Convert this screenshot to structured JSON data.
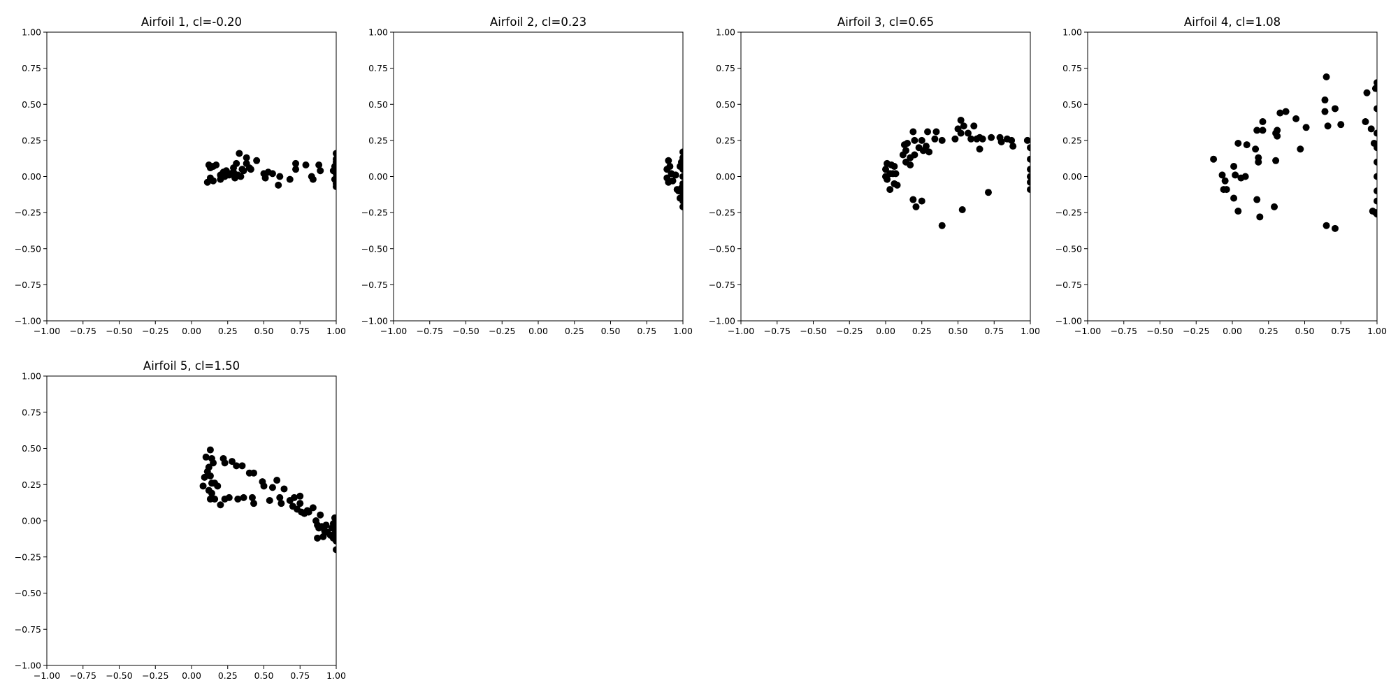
{
  "chart_data": [
    {
      "type": "scatter",
      "title": "Airfoil 1, cl=-0.20",
      "xlim": [
        -1.0,
        1.0
      ],
      "ylim": [
        -1.0,
        1.0
      ],
      "xticks": [
        "−1.00",
        "−0.75",
        "−0.50",
        "−0.25",
        "0.00",
        "0.25",
        "0.50",
        "0.75",
        "1.00"
      ],
      "yticks": [
        "−1.00",
        "−0.75",
        "−0.50",
        "−0.25",
        "0.00",
        "0.25",
        "0.50",
        "0.75",
        "1.00"
      ],
      "grid": false,
      "marker_color": "#000000",
      "points": [
        [
          0.12,
          0.08
        ],
        [
          0.15,
          0.07
        ],
        [
          0.17,
          0.08
        ],
        [
          0.13,
          0.06
        ],
        [
          0.13,
          -0.01
        ],
        [
          0.11,
          -0.04
        ],
        [
          0.15,
          -0.03
        ],
        [
          0.2,
          0.01
        ],
        [
          0.22,
          0.03
        ],
        [
          0.24,
          0.04
        ],
        [
          0.27,
          0.02
        ],
        [
          0.29,
          0.06
        ],
        [
          0.31,
          0.09
        ],
        [
          0.33,
          0.16
        ],
        [
          0.35,
          0.05
        ],
        [
          0.38,
          0.09
        ],
        [
          0.38,
          0.13
        ],
        [
          0.41,
          0.05
        ],
        [
          0.45,
          0.11
        ],
        [
          0.2,
          -0.02
        ],
        [
          0.23,
          0.0
        ],
        [
          0.26,
          0.01
        ],
        [
          0.3,
          -0.01
        ],
        [
          0.32,
          0.01
        ],
        [
          0.34,
          0.0
        ],
        [
          0.36,
          0.04
        ],
        [
          0.4,
          0.06
        ],
        [
          0.29,
          0.03
        ],
        [
          0.5,
          0.02
        ],
        [
          0.51,
          -0.01
        ],
        [
          0.53,
          0.03
        ],
        [
          0.56,
          0.02
        ],
        [
          0.6,
          -0.06
        ],
        [
          0.61,
          0.0
        ],
        [
          0.68,
          -0.02
        ],
        [
          0.72,
          0.09
        ],
        [
          0.72,
          0.05
        ],
        [
          0.79,
          0.08
        ],
        [
          0.83,
          0.0
        ],
        [
          0.84,
          -0.02
        ],
        [
          0.88,
          0.08
        ],
        [
          0.89,
          0.04
        ],
        [
          0.98,
          0.04
        ],
        [
          0.99,
          0.07
        ],
        [
          1.0,
          0.16
        ],
        [
          1.0,
          0.12
        ],
        [
          1.0,
          0.1
        ],
        [
          1.0,
          0.05
        ],
        [
          1.0,
          0.02
        ],
        [
          1.0,
          -0.01
        ],
        [
          1.0,
          -0.03
        ],
        [
          1.0,
          -0.05
        ],
        [
          1.0,
          -0.07
        ],
        [
          0.99,
          -0.02
        ]
      ]
    },
    {
      "type": "scatter",
      "title": "Airfoil 2, cl=0.23",
      "xlim": [
        -1.0,
        1.0
      ],
      "ylim": [
        -1.0,
        1.0
      ],
      "xticks": [
        "−1.00",
        "−0.75",
        "−0.50",
        "−0.25",
        "0.00",
        "0.25",
        "0.50",
        "0.75",
        "1.00"
      ],
      "yticks": [
        "−1.00",
        "−0.75",
        "−0.50",
        "−0.25",
        "0.00",
        "0.25",
        "0.50",
        "0.75",
        "1.00"
      ],
      "grid": false,
      "marker_color": "#000000",
      "points": [
        [
          0.89,
          0.05
        ],
        [
          0.9,
          0.11
        ],
        [
          0.91,
          0.07
        ],
        [
          0.92,
          0.02
        ],
        [
          0.89,
          -0.01
        ],
        [
          0.9,
          -0.04
        ],
        [
          0.93,
          -0.03
        ],
        [
          0.95,
          0.01
        ],
        [
          0.96,
          -0.09
        ],
        [
          0.97,
          -0.1
        ],
        [
          0.98,
          0.07
        ],
        [
          0.99,
          0.1
        ],
        [
          1.0,
          0.17
        ],
        [
          1.0,
          0.13
        ],
        [
          1.0,
          0.05
        ],
        [
          1.0,
          0.0
        ],
        [
          1.0,
          -0.05
        ],
        [
          1.0,
          -0.12
        ],
        [
          1.0,
          -0.17
        ],
        [
          1.0,
          -0.21
        ],
        [
          0.99,
          -0.08
        ],
        [
          0.98,
          -0.15
        ]
      ]
    },
    {
      "type": "scatter",
      "title": "Airfoil 3, cl=0.65",
      "xlim": [
        -1.0,
        1.0
      ],
      "ylim": [
        -1.0,
        1.0
      ],
      "xticks": [
        "−1.00",
        "−0.75",
        "−0.50",
        "−0.25",
        "0.00",
        "0.25",
        "0.50",
        "0.75",
        "1.00"
      ],
      "yticks": [
        "−1.00",
        "−0.75",
        "−0.50",
        "−0.25",
        "0.00",
        "0.25",
        "0.50",
        "0.75",
        "1.00"
      ],
      "grid": false,
      "marker_color": "#000000",
      "points": [
        [
          0.0,
          0.05
        ],
        [
          0.01,
          0.09
        ],
        [
          0.04,
          0.08
        ],
        [
          0.06,
          0.07
        ],
        [
          0.0,
          0.0
        ],
        [
          0.01,
          -0.02
        ],
        [
          0.03,
          0.02
        ],
        [
          0.05,
          0.02
        ],
        [
          0.07,
          0.02
        ],
        [
          0.03,
          -0.09
        ],
        [
          0.06,
          -0.05
        ],
        [
          0.08,
          -0.06
        ],
        [
          0.13,
          0.22
        ],
        [
          0.14,
          0.18
        ],
        [
          0.15,
          0.23
        ],
        [
          0.12,
          0.15
        ],
        [
          0.14,
          0.1
        ],
        [
          0.17,
          0.08
        ],
        [
          0.17,
          0.13
        ],
        [
          0.2,
          0.15
        ],
        [
          0.19,
          0.31
        ],
        [
          0.2,
          0.25
        ],
        [
          0.25,
          0.25
        ],
        [
          0.23,
          0.2
        ],
        [
          0.26,
          0.18
        ],
        [
          0.28,
          0.21
        ],
        [
          0.3,
          0.17
        ],
        [
          0.29,
          0.31
        ],
        [
          0.35,
          0.31
        ],
        [
          0.34,
          0.26
        ],
        [
          0.39,
          0.25
        ],
        [
          0.48,
          0.26
        ],
        [
          0.5,
          0.33
        ],
        [
          0.52,
          0.39
        ],
        [
          0.54,
          0.35
        ],
        [
          0.52,
          0.3
        ],
        [
          0.57,
          0.3
        ],
        [
          0.59,
          0.26
        ],
        [
          0.61,
          0.35
        ],
        [
          0.63,
          0.26
        ],
        [
          0.65,
          0.27
        ],
        [
          0.67,
          0.26
        ],
        [
          0.65,
          0.19
        ],
        [
          0.73,
          0.27
        ],
        [
          0.79,
          0.27
        ],
        [
          0.8,
          0.24
        ],
        [
          0.84,
          0.26
        ],
        [
          0.87,
          0.25
        ],
        [
          0.88,
          0.21
        ],
        [
          0.98,
          0.25
        ],
        [
          1.0,
          0.2
        ],
        [
          1.0,
          0.12
        ],
        [
          1.0,
          0.05
        ],
        [
          1.0,
          0.0
        ],
        [
          1.0,
          -0.04
        ],
        [
          1.0,
          -0.09
        ],
        [
          0.19,
          -0.16
        ],
        [
          0.21,
          -0.21
        ],
        [
          0.25,
          -0.17
        ],
        [
          0.39,
          -0.34
        ],
        [
          0.53,
          -0.23
        ],
        [
          0.71,
          -0.11
        ]
      ]
    },
    {
      "type": "scatter",
      "title": "Airfoil 4, cl=1.08",
      "xlim": [
        -1.0,
        1.0
      ],
      "ylim": [
        -1.0,
        1.0
      ],
      "xticks": [
        "−1.00",
        "−0.75",
        "−0.50",
        "−0.25",
        "0.00",
        "0.25",
        "0.50",
        "0.75",
        "1.00"
      ],
      "yticks": [
        "−1.00",
        "−0.75",
        "−0.50",
        "−0.25",
        "0.00",
        "0.25",
        "0.50",
        "0.75",
        "1.00"
      ],
      "grid": false,
      "marker_color": "#000000",
      "points": [
        [
          -0.13,
          0.12
        ],
        [
          -0.07,
          0.01
        ],
        [
          -0.05,
          -0.03
        ],
        [
          -0.04,
          -0.09
        ],
        [
          -0.06,
          -0.09
        ],
        [
          0.01,
          0.07
        ],
        [
          0.01,
          -0.15
        ],
        [
          0.02,
          0.01
        ],
        [
          0.04,
          -0.24
        ],
        [
          0.04,
          0.23
        ],
        [
          0.06,
          -0.01
        ],
        [
          0.09,
          0.0
        ],
        [
          0.1,
          0.22
        ],
        [
          0.16,
          0.19
        ],
        [
          0.17,
          0.32
        ],
        [
          0.18,
          0.13
        ],
        [
          0.18,
          0.1
        ],
        [
          0.17,
          -0.16
        ],
        [
          0.19,
          -0.28
        ],
        [
          0.21,
          0.32
        ],
        [
          0.21,
          0.38
        ],
        [
          0.29,
          -0.21
        ],
        [
          0.3,
          0.11
        ],
        [
          0.3,
          0.3
        ],
        [
          0.31,
          0.32
        ],
        [
          0.31,
          0.28
        ],
        [
          0.33,
          0.44
        ],
        [
          0.37,
          0.45
        ],
        [
          0.44,
          0.4
        ],
        [
          0.47,
          0.19
        ],
        [
          0.51,
          0.34
        ],
        [
          0.64,
          0.45
        ],
        [
          0.64,
          0.53
        ],
        [
          0.65,
          0.69
        ],
        [
          0.66,
          0.35
        ],
        [
          0.71,
          0.47
        ],
        [
          0.75,
          0.36
        ],
        [
          0.65,
          -0.34
        ],
        [
          0.71,
          -0.36
        ],
        [
          0.92,
          0.38
        ],
        [
          0.93,
          0.58
        ],
        [
          0.96,
          0.33
        ],
        [
          0.98,
          0.23
        ],
        [
          0.97,
          -0.24
        ],
        [
          0.99,
          0.61
        ],
        [
          1.0,
          0.65
        ],
        [
          1.0,
          0.47
        ],
        [
          1.0,
          0.3
        ],
        [
          1.0,
          0.2
        ],
        [
          1.0,
          0.1
        ],
        [
          1.0,
          0.0
        ],
        [
          1.0,
          -0.1
        ],
        [
          1.0,
          -0.17
        ],
        [
          1.0,
          -0.26
        ],
        [
          0.99,
          -0.25
        ]
      ]
    },
    {
      "type": "scatter",
      "title": "Airfoil 5, cl=1.50",
      "xlim": [
        -1.0,
        1.0
      ],
      "ylim": [
        -1.0,
        1.0
      ],
      "xticks": [
        "−1.00",
        "−0.75",
        "−0.50",
        "−0.25",
        "0.00",
        "0.25",
        "0.50",
        "0.75",
        "1.00"
      ],
      "yticks": [
        "−1.00",
        "−0.75",
        "−0.50",
        "−0.25",
        "0.00",
        "0.25",
        "0.50",
        "0.75",
        "1.00"
      ],
      "grid": false,
      "marker_color": "#000000",
      "points": [
        [
          0.08,
          0.24
        ],
        [
          0.09,
          0.3
        ],
        [
          0.1,
          0.44
        ],
        [
          0.11,
          0.34
        ],
        [
          0.12,
          0.37
        ],
        [
          0.13,
          0.31
        ],
        [
          0.13,
          0.49
        ],
        [
          0.14,
          0.43
        ],
        [
          0.15,
          0.4
        ],
        [
          0.12,
          0.21
        ],
        [
          0.13,
          0.15
        ],
        [
          0.14,
          0.19
        ],
        [
          0.14,
          0.26
        ],
        [
          0.16,
          0.15
        ],
        [
          0.18,
          0.24
        ],
        [
          0.16,
          0.26
        ],
        [
          0.2,
          0.11
        ],
        [
          0.22,
          0.43
        ],
        [
          0.23,
          0.4
        ],
        [
          0.23,
          0.15
        ],
        [
          0.26,
          0.16
        ],
        [
          0.28,
          0.41
        ],
        [
          0.31,
          0.38
        ],
        [
          0.32,
          0.15
        ],
        [
          0.35,
          0.38
        ],
        [
          0.36,
          0.16
        ],
        [
          0.4,
          0.33
        ],
        [
          0.42,
          0.16
        ],
        [
          0.43,
          0.33
        ],
        [
          0.43,
          0.12
        ],
        [
          0.49,
          0.27
        ],
        [
          0.5,
          0.24
        ],
        [
          0.54,
          0.14
        ],
        [
          0.56,
          0.23
        ],
        [
          0.59,
          0.28
        ],
        [
          0.61,
          0.16
        ],
        [
          0.62,
          0.12
        ],
        [
          0.64,
          0.22
        ],
        [
          0.68,
          0.14
        ],
        [
          0.7,
          0.1
        ],
        [
          0.71,
          0.16
        ],
        [
          0.73,
          0.08
        ],
        [
          0.75,
          0.17
        ],
        [
          0.75,
          0.12
        ],
        [
          0.76,
          0.06
        ],
        [
          0.78,
          0.05
        ],
        [
          0.8,
          0.07
        ],
        [
          0.81,
          0.06
        ],
        [
          0.84,
          0.09
        ],
        [
          0.86,
          0.0
        ],
        [
          0.87,
          -0.03
        ],
        [
          0.88,
          -0.05
        ],
        [
          0.87,
          -0.12
        ],
        [
          0.89,
          0.04
        ],
        [
          0.9,
          -0.04
        ],
        [
          0.91,
          -0.11
        ],
        [
          0.92,
          -0.07
        ],
        [
          0.93,
          -0.03
        ],
        [
          0.94,
          -0.08
        ],
        [
          0.96,
          -0.1
        ],
        [
          0.97,
          -0.05
        ],
        [
          0.98,
          -0.12
        ],
        [
          0.99,
          0.02
        ],
        [
          1.0,
          -0.06
        ],
        [
          1.0,
          -0.14
        ],
        [
          1.0,
          -0.2
        ],
        [
          0.99,
          -0.09
        ],
        [
          0.98,
          -0.02
        ]
      ]
    }
  ]
}
